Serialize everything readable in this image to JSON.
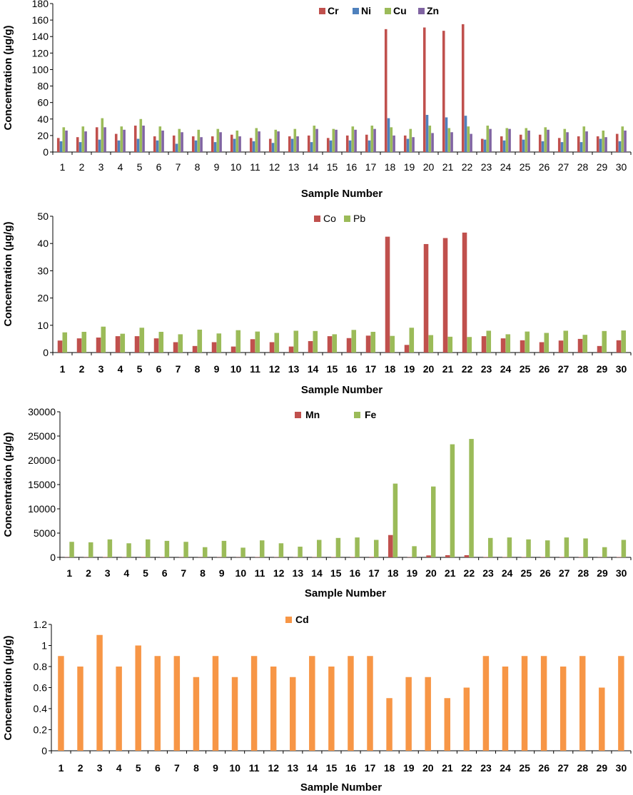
{
  "chart_data": [
    {
      "type": "bar",
      "title": "",
      "xlabel": "Sample Number",
      "ylabel": "Concentration (µg/g)",
      "ylim": [
        0,
        180
      ],
      "yticks": [
        0,
        20,
        40,
        60,
        80,
        100,
        120,
        140,
        160,
        180
      ],
      "grid": false,
      "legend": "top-center",
      "categories": [
        "1",
        "2",
        "3",
        "4",
        "5",
        "6",
        "7",
        "8",
        "9",
        "10",
        "11",
        "12",
        "13",
        "14",
        "15",
        "16",
        "17",
        "18",
        "19",
        "20",
        "21",
        "22",
        "23",
        "24",
        "25",
        "26",
        "27",
        "28",
        "29",
        "30"
      ],
      "series": [
        {
          "name": "Cr",
          "color": "#c0504d",
          "values": [
            17,
            18,
            30,
            22,
            32,
            19,
            20,
            19,
            19,
            21,
            17,
            16,
            19,
            20,
            17,
            20,
            21,
            149,
            20,
            151,
            147,
            155,
            16,
            19,
            21,
            21,
            17,
            19,
            19,
            22
          ]
        },
        {
          "name": "Ni",
          "color": "#4f81bd",
          "values": [
            13,
            12,
            15,
            14,
            16,
            14,
            10,
            14,
            12,
            16,
            13,
            11,
            16,
            12,
            14,
            14,
            14,
            41,
            16,
            45,
            42,
            44,
            15,
            14,
            15,
            13,
            12,
            12,
            16,
            13
          ]
        },
        {
          "name": "Cu",
          "color": "#9bbb59",
          "values": [
            30,
            31,
            41,
            31,
            40,
            31,
            28,
            27,
            28,
            26,
            29,
            27,
            28,
            32,
            28,
            31,
            32,
            30,
            28,
            32,
            29,
            31,
            32,
            29,
            29,
            30,
            28,
            31,
            26,
            31
          ]
        },
        {
          "name": "Zn",
          "color": "#8064a2",
          "values": [
            26,
            25,
            30,
            27,
            32,
            26,
            24,
            18,
            24,
            19,
            25,
            25,
            19,
            28,
            27,
            27,
            28,
            20,
            18,
            23,
            24,
            22,
            28,
            28,
            26,
            27,
            24,
            25,
            18,
            26
          ]
        }
      ]
    },
    {
      "type": "bar",
      "title": "",
      "xlabel": "Sample Number",
      "ylabel": "Concentration (µg/g)",
      "ylim": [
        0,
        50
      ],
      "yticks": [
        0,
        10,
        20,
        30,
        40,
        50
      ],
      "grid": false,
      "legend": "top-center",
      "categories": [
        "1",
        "2",
        "3",
        "4",
        "5",
        "6",
        "7",
        "8",
        "9",
        "10",
        "11",
        "12",
        "13",
        "14",
        "15",
        "16",
        "17",
        "18",
        "19",
        "20",
        "21",
        "22",
        "23",
        "24",
        "25",
        "26",
        "27",
        "28",
        "29",
        "30"
      ],
      "series": [
        {
          "name": "Co",
          "color": "#c0504d",
          "values": [
            4.4,
            5.2,
            5.5,
            6.0,
            6.0,
            5.2,
            3.8,
            2.4,
            3.8,
            2.2,
            4.9,
            3.8,
            2.2,
            4.2,
            6.0,
            5.3,
            6.2,
            42.5,
            2.8,
            39.8,
            42.0,
            44.0,
            6.0,
            5.2,
            4.5,
            3.8,
            4.4,
            5.0,
            2.4,
            4.5
          ]
        },
        {
          "name": "Pb",
          "color": "#9bbb59",
          "values": [
            7.4,
            7.6,
            9.5,
            6.9,
            9.1,
            7.6,
            6.7,
            8.4,
            7.0,
            8.2,
            7.7,
            7.2,
            8.0,
            7.9,
            6.7,
            8.3,
            7.6,
            6.1,
            9.1,
            6.4,
            5.8,
            5.7,
            8.0,
            6.7,
            7.7,
            7.2,
            8.0,
            6.5,
            7.9,
            8.1
          ]
        }
      ]
    },
    {
      "type": "bar",
      "title": "",
      "xlabel": "Sample Number",
      "ylabel": "Concentration (µg/g)",
      "ylim": [
        0,
        30000
      ],
      "yticks": [
        0,
        5000,
        10000,
        15000,
        20000,
        25000,
        30000
      ],
      "grid": false,
      "legend": "top-center",
      "categories": [
        "1",
        "2",
        "3",
        "4",
        "5",
        "6",
        "7",
        "8",
        "9",
        "10",
        "11",
        "12",
        "13",
        "14",
        "15",
        "16",
        "17",
        "18",
        "19",
        "20",
        "21",
        "22",
        "23",
        "24",
        "25",
        "26",
        "27",
        "28",
        "29",
        "30"
      ],
      "series": [
        {
          "name": "Mn",
          "color": "#c0504d",
          "values": [
            50,
            50,
            80,
            50,
            100,
            60,
            50,
            40,
            50,
            40,
            60,
            50,
            40,
            60,
            70,
            80,
            100,
            4600,
            60,
            400,
            450,
            450,
            80,
            70,
            70,
            70,
            80,
            80,
            40,
            70
          ]
        },
        {
          "name": "Fe",
          "color": "#9bbb59",
          "values": [
            3200,
            3100,
            3700,
            2900,
            3700,
            3400,
            3200,
            2100,
            3400,
            2000,
            3500,
            2900,
            2200,
            3600,
            4000,
            4100,
            3600,
            15200,
            2300,
            14600,
            23300,
            24400,
            4000,
            4100,
            3700,
            3500,
            4100,
            3900,
            2100,
            3600
          ]
        }
      ]
    },
    {
      "type": "bar",
      "title": "",
      "xlabel": "Sample Number",
      "ylabel": "Concentration (µg/g)",
      "ylim": [
        0,
        1.2
      ],
      "yticks": [
        "0",
        "0.2",
        "0.4",
        "0.6",
        "0.8",
        "1",
        "1.2"
      ],
      "grid": false,
      "legend": "top-center",
      "categories": [
        "1",
        "2",
        "3",
        "4",
        "5",
        "6",
        "7",
        "8",
        "9",
        "10",
        "11",
        "12",
        "13",
        "14",
        "15",
        "16",
        "17",
        "18",
        "19",
        "20",
        "21",
        "22",
        "23",
        "24",
        "25",
        "26",
        "27",
        "28",
        "29",
        "30"
      ],
      "series": [
        {
          "name": "Cd",
          "color": "#f79646",
          "values": [
            0.9,
            0.8,
            1.1,
            0.8,
            1.0,
            0.9,
            0.9,
            0.7,
            0.9,
            0.7,
            0.9,
            0.8,
            0.7,
            0.9,
            0.8,
            0.9,
            0.9,
            0.5,
            0.7,
            0.7,
            0.5,
            0.6,
            0.9,
            0.8,
            0.9,
            0.9,
            0.8,
            0.9,
            0.6,
            0.9
          ]
        }
      ]
    }
  ]
}
